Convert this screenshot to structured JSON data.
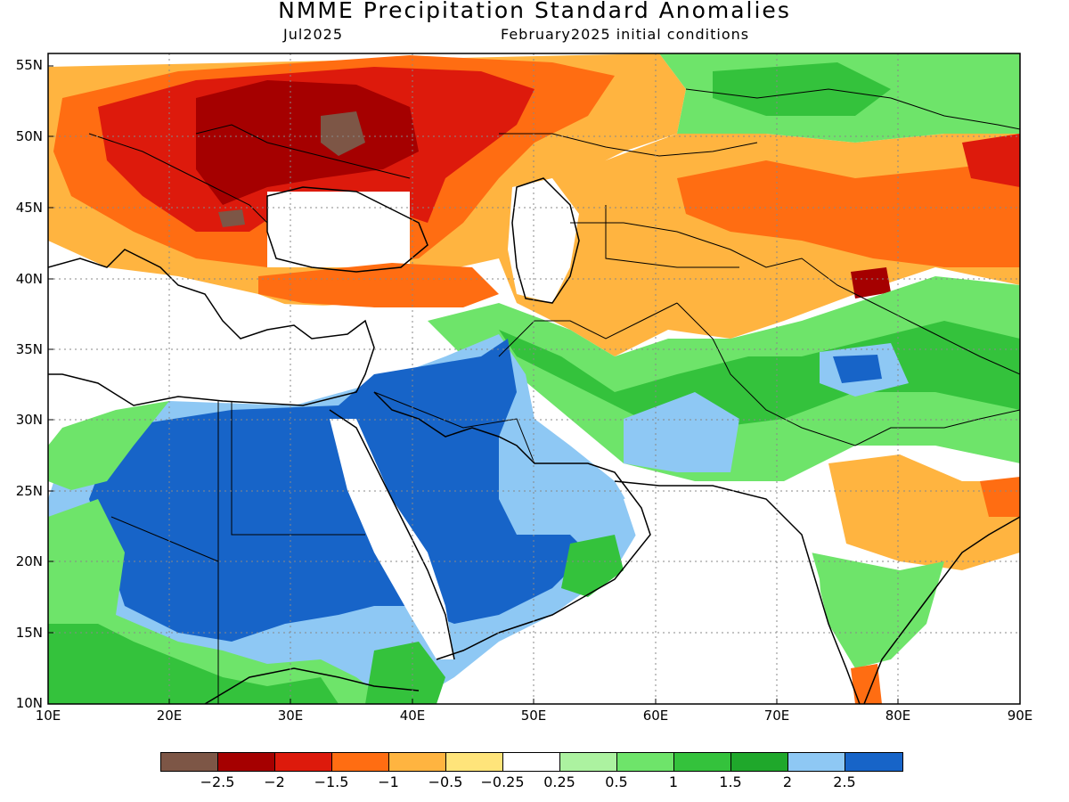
{
  "header": {
    "title": "NMME Precipitation Standard Anomalies",
    "valid_month": "Jul2025",
    "init": "February2025 initial conditions"
  },
  "map": {
    "lat_labels": [
      "55N",
      "50N",
      "45N",
      "40N",
      "35N",
      "30N",
      "25N",
      "20N",
      "15N",
      "10N"
    ],
    "lon_labels": [
      "10E",
      "20E",
      "30E",
      "40E",
      "50E",
      "60E",
      "70E",
      "80E",
      "90E"
    ],
    "lon_range": [
      10,
      90
    ],
    "lat_range": [
      10,
      56
    ],
    "gridlines": "dotted"
  },
  "legend": {
    "labels": [
      "−2.5",
      "−2",
      "−1.5",
      "−1",
      "−0.5",
      "−0.25",
      "0.25",
      "0.5",
      "1",
      "1.5",
      "2",
      "2.5"
    ],
    "colors": [
      "#7d5646",
      "#a50000",
      "#dd1a0c",
      "#ff6d12",
      "#ffb440",
      "#ffe47a",
      "#ffffff",
      "#acf2a0",
      "#6ee46a",
      "#34c23c",
      "#1fa82b",
      "#8ec8f4",
      "#1764c8"
    ]
  }
}
